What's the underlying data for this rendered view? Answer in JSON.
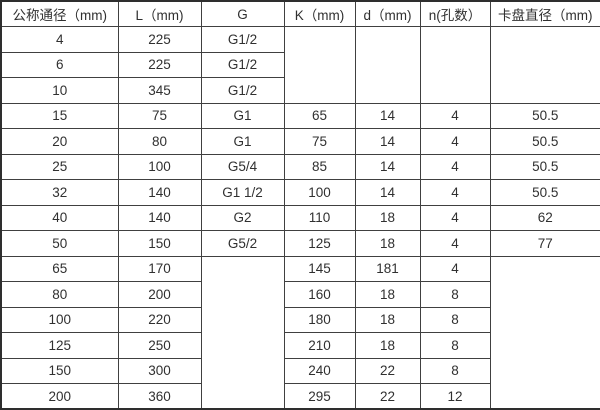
{
  "table": {
    "title": "dimension-spec-table",
    "headers": [
      "公称通径（mm)",
      "L（mm)",
      "G",
      "K（mm)",
      "d（mm)",
      "n(孔数）",
      "卡盘直径（mm)"
    ],
    "rows": [
      [
        "4",
        "225",
        "G1/2",
        "",
        "",
        "",
        ""
      ],
      [
        "6",
        "225",
        "G1/2",
        "",
        "",
        "",
        ""
      ],
      [
        "10",
        "345",
        "G1/2",
        "",
        "",
        "",
        ""
      ],
      [
        "15",
        "75",
        "G1",
        "65",
        "14",
        "4",
        "50.5"
      ],
      [
        "20",
        "80",
        "G1",
        "75",
        "14",
        "4",
        "50.5"
      ],
      [
        "25",
        "100",
        "G5/4",
        "85",
        "14",
        "4",
        "50.5"
      ],
      [
        "32",
        "140",
        "G1 1/2",
        "100",
        "14",
        "4",
        "50.5"
      ],
      [
        "40",
        "140",
        "G2",
        "110",
        "18",
        "4",
        "62"
      ],
      [
        "50",
        "150",
        "G5/2",
        "125",
        "18",
        "4",
        "77"
      ],
      [
        "65",
        "170",
        "",
        "145",
        "181",
        "4",
        ""
      ],
      [
        "80",
        "200",
        "",
        "160",
        "18",
        "8",
        ""
      ],
      [
        "100",
        "220",
        "",
        "180",
        "18",
        "8",
        ""
      ],
      [
        "125",
        "250",
        "",
        "210",
        "18",
        "8",
        ""
      ],
      [
        "150",
        "300",
        "",
        "240",
        "22",
        "8",
        ""
      ],
      [
        "200",
        "360",
        "",
        "295",
        "22",
        "12",
        ""
      ]
    ]
  }
}
